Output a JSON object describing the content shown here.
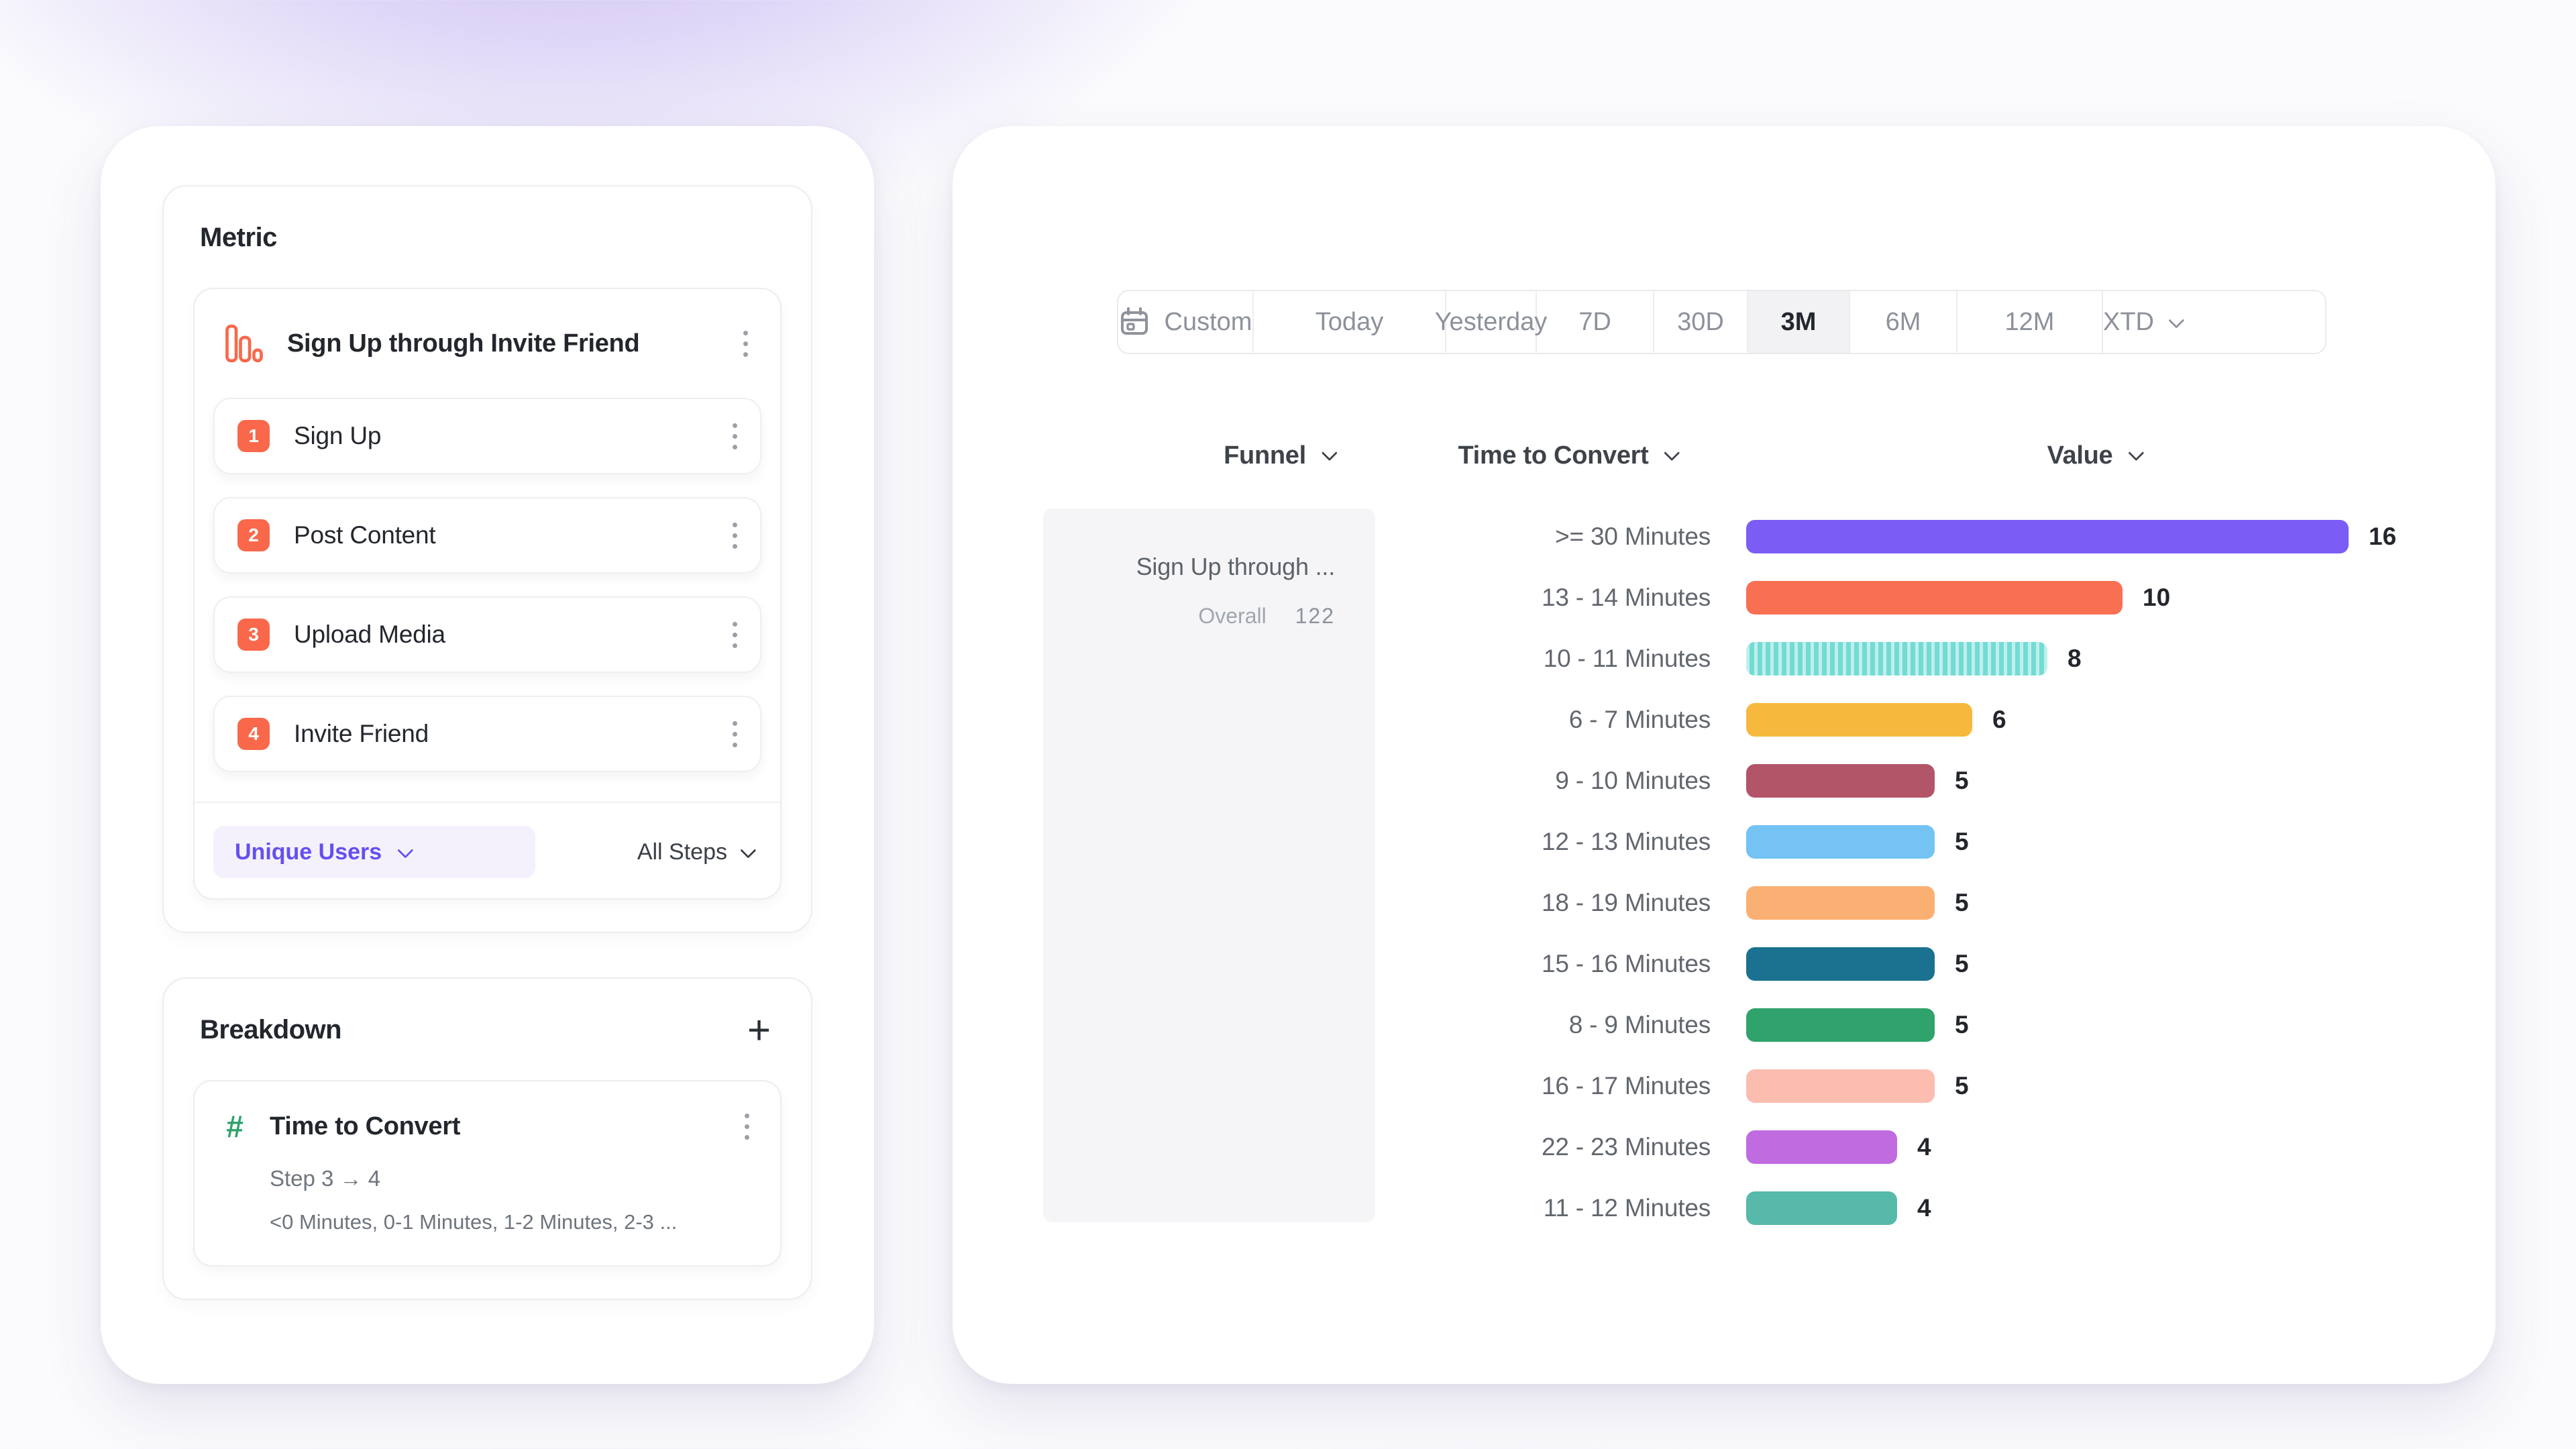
{
  "colors": {
    "accent_purple": "#6450ee",
    "badge_orange": "#f9684b",
    "hash_green": "#2fa36b",
    "selected_tab_bg": "#f2f2f4",
    "summary_bg": "#f5f5f7"
  },
  "icons": {
    "plus": "+",
    "hash": "#"
  },
  "left_panel": {
    "metric_section": {
      "title": "Metric",
      "funnel": {
        "name": "Sign Up through Invite Friend",
        "steps": [
          {
            "index": "1",
            "label": "Sign Up"
          },
          {
            "index": "2",
            "label": "Post Content"
          },
          {
            "index": "3",
            "label": "Upload Media"
          },
          {
            "index": "4",
            "label": "Invite Friend"
          }
        ]
      },
      "counting_dropdown": "Unique Users",
      "steps_scope_dropdown": "All Steps"
    },
    "breakdown_section": {
      "title": "Breakdown",
      "item": {
        "name": "Time to Convert",
        "step_range": "Step 3 → 4",
        "buckets_preview": "<0 Minutes, 0-1 Minutes, 1-2 Minutes, 2-3 ..."
      }
    }
  },
  "right_panel": {
    "date_range": {
      "selected": "3M",
      "options": [
        {
          "label": "Custom",
          "icon": "calendar"
        },
        {
          "label": "Today"
        },
        {
          "label": "Yesterday"
        },
        {
          "label": "7D"
        },
        {
          "label": "30D"
        },
        {
          "label": "3M",
          "selected": true
        },
        {
          "label": "6M"
        },
        {
          "label": "12M"
        },
        {
          "label": "XTD",
          "chevron": true
        }
      ]
    },
    "column_headers": {
      "funnel": "Funnel",
      "breakdown": "Time to Convert",
      "value": "Value"
    },
    "funnel_summary": {
      "name": "Sign Up through ...",
      "overall_label": "Overall",
      "overall_value": "122"
    }
  },
  "chart_data": {
    "type": "bar",
    "orientation": "horizontal",
    "title": "Time to Convert breakdown values",
    "xlabel": "Value",
    "ylabel": "Time to Convert bucket",
    "xlim": [
      0,
      16
    ],
    "grid": false,
    "categories": [
      ">= 30 Minutes",
      "13 - 14 Minutes",
      "10 - 11 Minutes",
      "6 - 7 Minutes",
      "9 - 10 Minutes",
      "12 - 13 Minutes",
      "18 - 19 Minutes",
      "15 - 16 Minutes",
      "8 - 9 Minutes",
      "16 - 17 Minutes",
      "22 - 23 Minutes",
      "11 - 12 Minutes"
    ],
    "values": [
      16,
      10,
      8,
      6,
      5,
      5,
      5,
      5,
      5,
      5,
      4,
      4
    ],
    "colors": [
      "#7b5cf5",
      "#f86f52",
      "#72dcd4",
      "#f6b93d",
      "#b25568",
      "#74c3f3",
      "#fbb073",
      "#1b7190",
      "#2fa36b",
      "#fcbdb1",
      "#c06be0",
      "#57b9aa"
    ],
    "patterned_index": 2
  }
}
